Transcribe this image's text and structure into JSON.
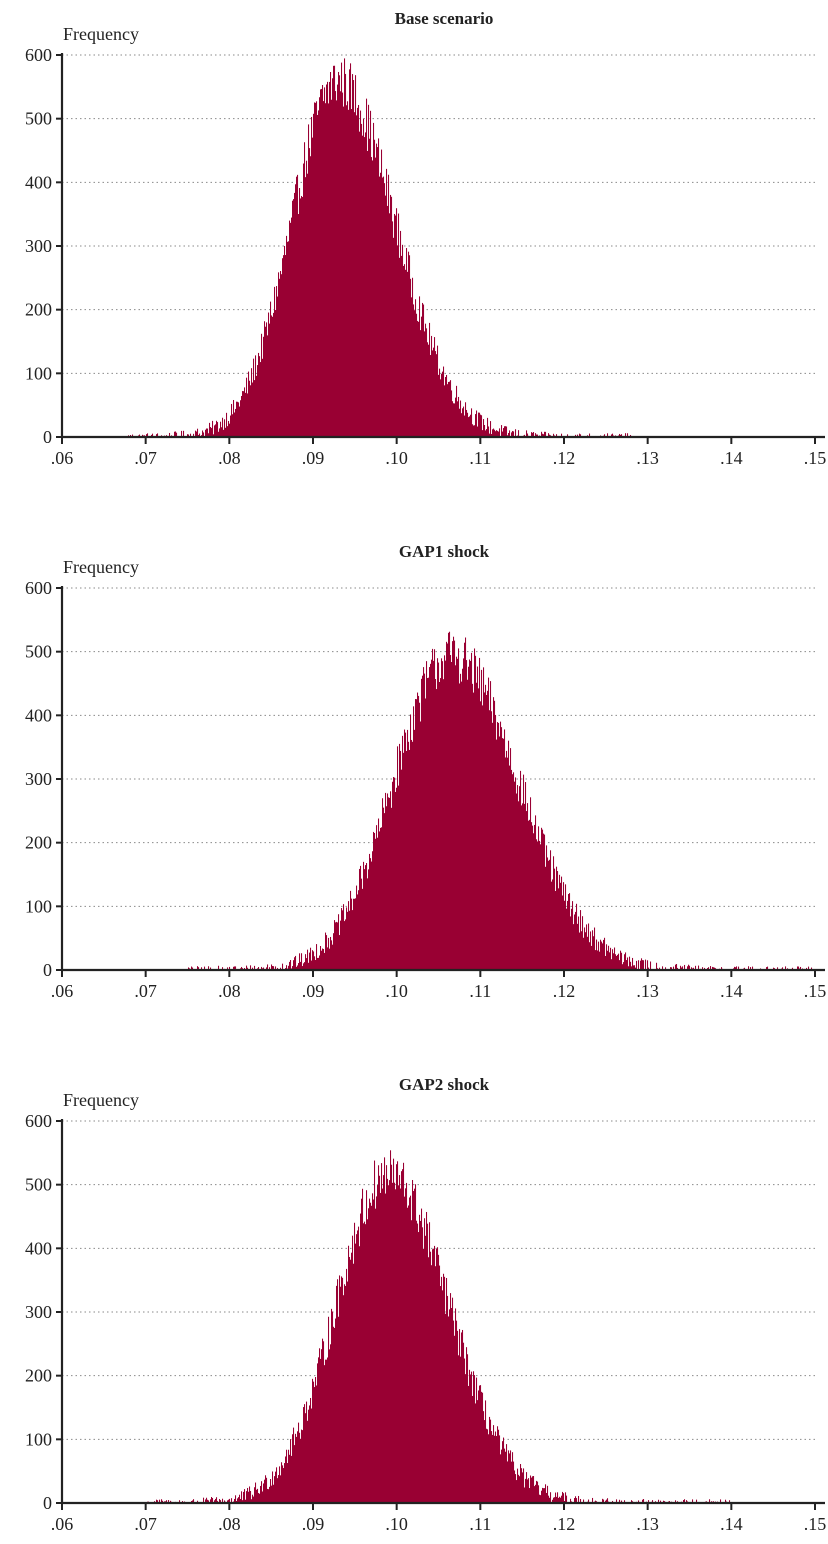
{
  "chart_data": [
    {
      "type": "bar",
      "title": "Base scenario",
      "ylabel": "Frequency",
      "xlabel": "",
      "xlim": [
        0.06,
        0.15
      ],
      "ylim": [
        0,
        600
      ],
      "x_ticks": [
        ".06",
        ".07",
        ".08",
        ".09",
        ".10",
        ".11",
        ".12",
        ".13",
        ".14",
        ".15"
      ],
      "y_ticks": [
        "0",
        "100",
        "200",
        "300",
        "400",
        "500",
        "600"
      ],
      "grid": true,
      "color": "#990033",
      "distribution": {
        "mode": 0.093,
        "peak": 560,
        "sigma_left": 0.0055,
        "sigma_right": 0.0068,
        "x_start": 0.068,
        "x_end": 0.128
      }
    },
    {
      "type": "bar",
      "title": "GAP1 shock",
      "ylabel": "Frequency",
      "xlabel": "",
      "xlim": [
        0.06,
        0.15
      ],
      "ylim": [
        0,
        600
      ],
      "x_ticks": [
        ".06",
        ".07",
        ".08",
        ".09",
        ".10",
        ".11",
        ".12",
        ".13",
        ".14",
        ".15"
      ],
      "y_ticks": [
        "0",
        "100",
        "200",
        "300",
        "400",
        "500",
        "600"
      ],
      "grid": true,
      "color": "#990033",
      "distribution": {
        "mode": 0.1065,
        "peak": 495,
        "sigma_left": 0.0068,
        "sigma_right": 0.008,
        "x_start": 0.075,
        "x_end": 0.15
      }
    },
    {
      "type": "bar",
      "title": "GAP2 shock",
      "ylabel": "Frequency",
      "xlabel": "",
      "xlim": [
        0.06,
        0.15
      ],
      "ylim": [
        0,
        600
      ],
      "x_ticks": [
        ".06",
        ".07",
        ".08",
        ".09",
        ".10",
        ".11",
        ".12",
        ".13",
        ".14",
        ".15"
      ],
      "y_ticks": [
        "0",
        "100",
        "200",
        "300",
        "400",
        "500",
        "600"
      ],
      "grid": true,
      "color": "#990033",
      "distribution": {
        "mode": 0.099,
        "peak": 515,
        "sigma_left": 0.0062,
        "sigma_right": 0.0072,
        "x_start": 0.07,
        "x_end": 0.14
      }
    }
  ]
}
